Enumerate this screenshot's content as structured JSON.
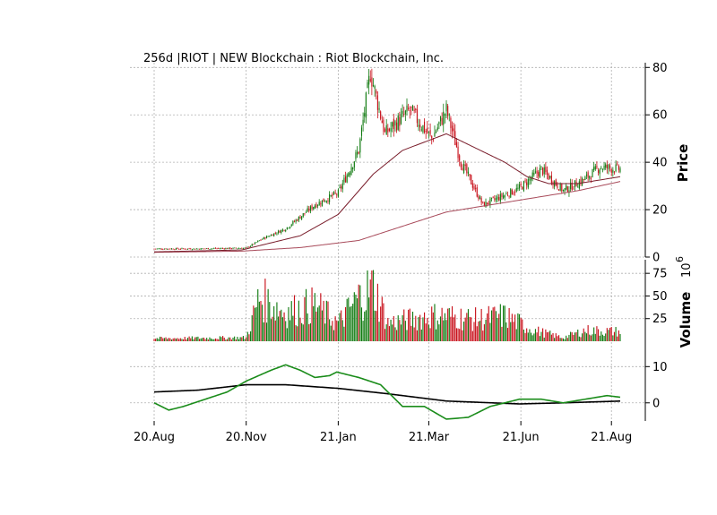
{
  "chart_data": {
    "type": "candlestick",
    "title": "256d |RIOT | NEW Blockchain : Riot Blockchain, Inc.",
    "colors": {
      "up": "#107a10",
      "down": "#c8101a",
      "ma_fast": "#7a1e2c",
      "ma_slow": "#a84a5a",
      "osc_fast": "#1a8c1a",
      "osc_slow": "#000000"
    },
    "x_ticks": [
      "20.Aug",
      "20.Nov",
      "21.Jan",
      "21.Mar",
      "21.Jun",
      "21.Aug"
    ],
    "x_tick_index": [
      0,
      63,
      126,
      188,
      251,
      313
    ],
    "n_bars": 320,
    "price_panel": {
      "ylabel": "Price",
      "ylim": [
        0,
        82
      ],
      "yticks": [
        "0",
        "20",
        "40",
        "60",
        "80"
      ],
      "ytick_values": [
        0,
        20,
        40,
        60,
        80
      ]
    },
    "volume_panel": {
      "ylabel": "Volume",
      "exponent": "10",
      "exponent_power": "6",
      "ylim": [
        0,
        90
      ],
      "yticks": [
        "25",
        "50",
        "75"
      ],
      "ytick_values": [
        25,
        50,
        75
      ]
    },
    "osc_panel": {
      "ylim": [
        -5,
        17
      ],
      "yticks": [
        "10",
        "0"
      ],
      "ytick_values": [
        10,
        0
      ]
    },
    "close_keypoints": [
      [
        0,
        3.5
      ],
      [
        30,
        3.5
      ],
      [
        63,
        3.8
      ],
      [
        75,
        8
      ],
      [
        90,
        12
      ],
      [
        110,
        22
      ],
      [
        126,
        27
      ],
      [
        140,
        45
      ],
      [
        148,
        78
      ],
      [
        158,
        52
      ],
      [
        175,
        62
      ],
      [
        190,
        50
      ],
      [
        200,
        62
      ],
      [
        210,
        40
      ],
      [
        225,
        22
      ],
      [
        250,
        29
      ],
      [
        265,
        37
      ],
      [
        280,
        28
      ],
      [
        295,
        33
      ],
      [
        305,
        38
      ],
      [
        320,
        37
      ]
    ],
    "ma_fast_keypoints": [
      [
        0,
        2.2
      ],
      [
        60,
        3
      ],
      [
        100,
        9
      ],
      [
        126,
        18
      ],
      [
        150,
        35
      ],
      [
        170,
        45
      ],
      [
        200,
        52
      ],
      [
        220,
        46
      ],
      [
        240,
        40
      ],
      [
        255,
        34
      ],
      [
        270,
        31
      ],
      [
        290,
        31
      ],
      [
        320,
        34
      ]
    ],
    "ma_slow_keypoints": [
      [
        0,
        2
      ],
      [
        60,
        2.5
      ],
      [
        100,
        4
      ],
      [
        140,
        7
      ],
      [
        170,
        13
      ],
      [
        200,
        19
      ],
      [
        230,
        22
      ],
      [
        260,
        25
      ],
      [
        290,
        28
      ],
      [
        320,
        32
      ]
    ],
    "volume_keypoints": [
      [
        0,
        4
      ],
      [
        63,
        5
      ],
      [
        72,
        60
      ],
      [
        90,
        40
      ],
      [
        110,
        50
      ],
      [
        126,
        25
      ],
      [
        140,
        60
      ],
      [
        150,
        75
      ],
      [
        160,
        25
      ],
      [
        175,
        30
      ],
      [
        190,
        35
      ],
      [
        200,
        35
      ],
      [
        220,
        30
      ],
      [
        240,
        35
      ],
      [
        260,
        15
      ],
      [
        280,
        5
      ],
      [
        295,
        15
      ],
      [
        320,
        13
      ]
    ],
    "osc_fast_keypoints": [
      [
        0,
        0
      ],
      [
        10,
        -2
      ],
      [
        20,
        -1
      ],
      [
        35,
        1
      ],
      [
        50,
        3
      ],
      [
        63,
        6
      ],
      [
        80,
        9
      ],
      [
        90,
        10.5
      ],
      [
        100,
        9
      ],
      [
        110,
        7
      ],
      [
        120,
        7.5
      ],
      [
        125,
        8.5
      ],
      [
        140,
        7
      ],
      [
        155,
        5
      ],
      [
        170,
        -1
      ],
      [
        185,
        -1
      ],
      [
        200,
        -4.5
      ],
      [
        215,
        -4
      ],
      [
        230,
        -1
      ],
      [
        250,
        1
      ],
      [
        265,
        1
      ],
      [
        280,
        0
      ],
      [
        295,
        1
      ],
      [
        310,
        2
      ],
      [
        320,
        1.5
      ]
    ],
    "osc_slow_keypoints": [
      [
        0,
        3
      ],
      [
        30,
        3.5
      ],
      [
        63,
        5
      ],
      [
        90,
        5
      ],
      [
        126,
        4
      ],
      [
        160,
        2.5
      ],
      [
        200,
        0.5
      ],
      [
        250,
        -0.3
      ],
      [
        280,
        0
      ],
      [
        320,
        0.5
      ]
    ]
  }
}
